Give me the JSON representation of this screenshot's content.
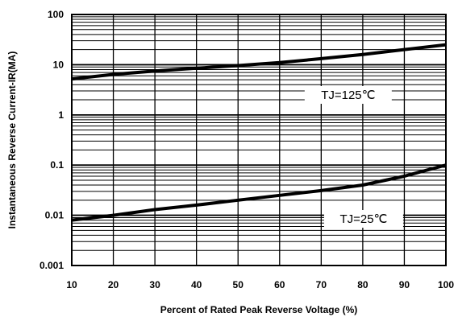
{
  "chart_data": {
    "type": "line",
    "title": "",
    "xlabel": "Percent of Rated Peak Reverse Voltage (%)",
    "ylabel": "Instantaneous Reverse Current-IR(MA)",
    "xlim": [
      10,
      100
    ],
    "ylim": [
      0.001,
      100
    ],
    "yscale": "log",
    "grid": true,
    "x_ticks": [
      "10",
      "20",
      "30",
      "40",
      "50",
      "60",
      "70",
      "80",
      "90",
      "100"
    ],
    "y_ticks": [
      "0.001",
      "0.01",
      "0.1",
      "1",
      "10",
      "100"
    ],
    "series": [
      {
        "name": "TJ=125℃",
        "x": [
          10,
          20,
          30,
          40,
          50,
          60,
          70,
          80,
          90,
          100
        ],
        "y": [
          5.2,
          6.4,
          7.5,
          8.5,
          9.6,
          11.0,
          13.2,
          16.0,
          20.0,
          25.0
        ]
      },
      {
        "name": "TJ=25℃",
        "x": [
          10,
          20,
          30,
          40,
          50,
          60,
          70,
          80,
          90,
          100
        ],
        "y": [
          0.008,
          0.01,
          0.013,
          0.016,
          0.02,
          0.025,
          0.031,
          0.04,
          0.06,
          0.1
        ]
      }
    ]
  }
}
